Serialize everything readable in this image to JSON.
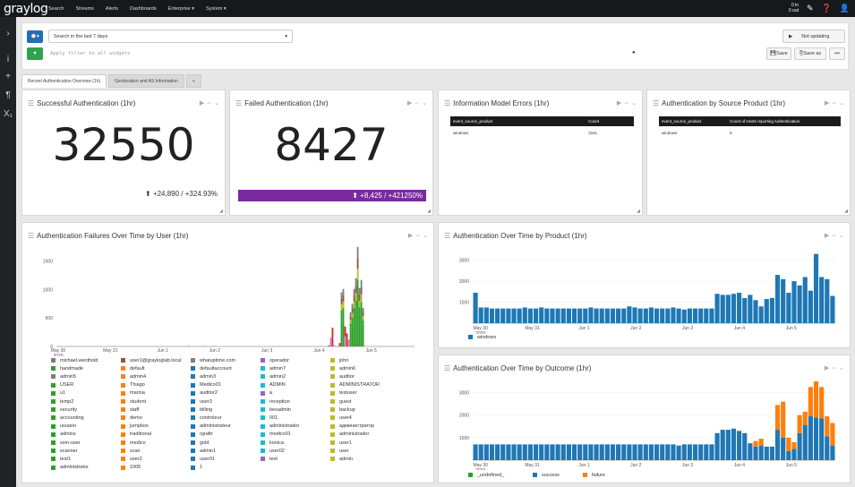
{
  "topbar": {
    "logo": "graylog",
    "nav": [
      "Search",
      "Streams",
      "Alerts",
      "Dashboards",
      "Enterprise ▾",
      "System ▾"
    ],
    "io_in": "0 in",
    "io_out": "0 out"
  },
  "search": {
    "time_range": "Search in the last 7 days",
    "filter_placeholder": "Apply filter to all widgets",
    "refresh_label": "Not updating",
    "save_label": "Save",
    "save_as_label": "Save as",
    "more_label": "•••"
  },
  "tabs": [
    "Recent Authentication Overview (1h)",
    "Geolocation and AS Information",
    "+"
  ],
  "widgets": {
    "success": {
      "title": "Successful Authentication (1hr)",
      "value": "32550",
      "delta": "+24,890 / +324.93%"
    },
    "failed": {
      "title": "Failed Authentication (1hr)",
      "value": "8427",
      "delta": "+8,425 / +421250%"
    },
    "model_errors": {
      "title": "Information Model Errors (1hr)",
      "headers": [
        "event_source_product",
        "Count"
      ],
      "rows": [
        [
          "windows",
          "3161"
        ]
      ]
    },
    "by_source": {
      "title": "Authentication by Source Product (1hr)",
      "headers": [
        "event_source_product",
        "Count of Hosts reporting Authentication"
      ],
      "rows": [
        [
          "windows",
          "5"
        ]
      ]
    },
    "failures_user": {
      "title": "Authentication Failures Over Time by User (1hr)"
    },
    "by_product": {
      "title": "Authentication Over Time by Product (1hr)"
    },
    "by_outcome": {
      "title": "Authentication Over Time by Outcome (1hr)"
    }
  },
  "colors": {
    "accent": "#7a2aa0",
    "green": "#2ca02c",
    "blue": "#1f77b4",
    "orange": "#ff7f0e"
  },
  "chart_data": [
    {
      "type": "bar",
      "stacked": true,
      "ylim": [
        0,
        1700
      ],
      "x_ticks": [
        "May 30\n2020",
        "May 31",
        "Jun 1",
        "Jun 2",
        "Jun 3",
        "Jun 4",
        "Jun 5"
      ],
      "y_ticks": [
        0,
        500,
        1000,
        1500
      ],
      "totals": [
        0,
        0,
        0,
        0,
        0,
        0,
        0,
        0,
        0,
        0,
        0,
        0,
        0,
        0,
        0,
        0,
        0,
        0,
        0,
        0,
        0,
        0,
        0,
        0,
        0,
        0,
        0,
        0,
        0,
        0,
        0,
        0,
        0,
        0,
        0,
        0,
        0,
        0,
        0,
        0,
        0,
        0,
        0,
        0,
        0,
        0,
        0,
        0,
        0,
        0,
        0,
        0,
        0,
        0,
        0,
        0,
        0,
        0,
        0,
        0,
        0,
        0,
        0,
        0,
        0,
        0,
        0,
        0,
        0,
        0,
        0,
        0,
        0,
        10,
        0,
        0,
        0,
        0,
        0,
        0,
        0,
        5,
        0,
        0,
        0,
        0,
        0,
        5,
        0,
        0,
        0,
        0,
        0,
        0,
        0,
        0,
        0,
        0,
        0,
        0,
        0,
        0,
        0,
        0,
        0,
        0,
        0,
        0,
        0,
        0,
        0,
        0,
        0,
        0,
        0,
        0,
        0,
        0,
        0,
        0,
        0,
        0,
        0,
        0,
        5,
        0,
        0,
        0,
        0,
        0,
        0,
        0,
        0,
        0,
        0,
        0,
        0,
        0,
        0,
        0,
        0,
        0,
        0,
        0,
        0,
        0,
        0,
        0,
        0,
        0,
        0,
        20,
        150,
        330,
        20,
        0,
        0,
        60,
        950,
        1010,
        350,
        230,
        120,
        600,
        750,
        1010,
        1200,
        1750,
        1030,
        1170,
        680,
        0,
        0,
        0,
        0,
        0,
        0,
        0,
        0,
        0,
        0,
        0,
        0,
        0,
        0,
        0,
        0,
        0,
        0,
        0,
        0,
        0,
        0,
        0,
        0,
        0,
        0,
        0,
        0
      ],
      "legend": [
        [
          "michael.wenthold",
          "#7f7f7f"
        ],
        [
          "user1@grayloglab.local",
          "#8c564b"
        ],
        [
          "whatuptime.com",
          "#7f7f7f"
        ],
        [
          "operador",
          "#9467bd"
        ],
        [
          "john",
          "#bcbd22"
        ],
        [
          "handmade",
          "#2ca02c"
        ],
        [
          "default",
          "#ff7f0e"
        ],
        [
          "defaultaccount",
          "#1f77b4"
        ],
        [
          "admin7",
          "#17becf"
        ],
        [
          "admin6",
          "#bcbd22"
        ],
        [
          "admin5",
          "#7f7f7f"
        ],
        [
          "admin4",
          "#ff7f0e"
        ],
        [
          "admin3",
          "#1f77b4"
        ],
        [
          "admin2",
          "#17becf"
        ],
        [
          "auditor",
          "#bcbd22"
        ],
        [
          "USER",
          "#2ca02c"
        ],
        [
          "Thiago",
          "#ff7f0e"
        ],
        [
          "Medico01",
          "#1f77b4"
        ],
        [
          "ADMIN",
          "#17becf"
        ],
        [
          "ADMINISTRATOR",
          "#bcbd22"
        ],
        [
          "u1",
          "#2ca02c"
        ],
        [
          "marina",
          "#ff7f0e"
        ],
        [
          "auditor2",
          "#1f77b4"
        ],
        [
          "a",
          "#9467bd"
        ],
        [
          "testuser",
          "#bcbd22"
        ],
        [
          "temp2",
          "#2ca02c"
        ],
        [
          "student",
          "#ff7f0e"
        ],
        [
          "user3",
          "#1f77b4"
        ],
        [
          "reception",
          "#17becf"
        ],
        [
          "guest",
          "#bcbd22"
        ],
        [
          "security",
          "#2ca02c"
        ],
        [
          "staff",
          "#ff7f0e"
        ],
        [
          "billing",
          "#1f77b4"
        ],
        [
          "besadmin",
          "#17becf"
        ],
        [
          "backup",
          "#bcbd22"
        ],
        [
          "accounting",
          "#2ca02c"
        ],
        [
          "demo",
          "#ff7f0e"
        ],
        [
          "controleur",
          "#1f77b4"
        ],
        [
          "001",
          "#17becf"
        ],
        [
          "user4",
          "#bcbd22"
        ],
        [
          "usuario",
          "#2ca02c"
        ],
        [
          "jumpbox",
          "#ff7f0e"
        ],
        [
          "administrateur",
          "#1f77b4"
        ],
        [
          "administrador",
          "#17becf"
        ],
        [
          "aдминистратор",
          "#bcbd22"
        ],
        [
          "admins",
          "#2ca02c"
        ],
        [
          "traditional",
          "#ff7f0e"
        ],
        [
          "rgraftr",
          "#1f77b4"
        ],
        [
          "medico01",
          "#17becf"
        ],
        [
          "administrador",
          "#bcbd22"
        ],
        [
          "ssm-user",
          "#2ca02c"
        ],
        [
          "medico",
          "#ff7f0e"
        ],
        [
          "gold",
          "#1f77b4"
        ],
        [
          "konica",
          "#17becf"
        ],
        [
          "user1",
          "#bcbd22"
        ],
        [
          "scanner",
          "#2ca02c"
        ],
        [
          "scan",
          "#ff7f0e"
        ],
        [
          "admin1",
          "#1f77b4"
        ],
        [
          "user02",
          "#17becf"
        ],
        [
          "user",
          "#bcbd22"
        ],
        [
          "test1",
          "#2ca02c"
        ],
        [
          "user2",
          "#ff7f0e"
        ],
        [
          "user01",
          "#1f77b4"
        ],
        [
          "test",
          "#9467bd"
        ],
        [
          "admin",
          "#bcbd22"
        ],
        [
          "administrator",
          "#2ca02c"
        ],
        [
          "1005",
          "#ff7f0e"
        ],
        [
          "1",
          "#1f77b4"
        ]
      ]
    },
    {
      "type": "bar",
      "ylim": [
        0,
        3500
      ],
      "x_ticks": [
        "May 30\n2020",
        "May 31",
        "Jun 1",
        "Jun 2",
        "Jun 3",
        "Jun 4",
        "Jun 5"
      ],
      "y_ticks": [
        1000,
        2000,
        3000
      ],
      "series": [
        {
          "name": "windows",
          "color": "#1f77b4",
          "values": [
            1450,
            750,
            750,
            700,
            700,
            700,
            700,
            700,
            700,
            750,
            700,
            700,
            750,
            700,
            700,
            700,
            700,
            700,
            700,
            700,
            700,
            750,
            700,
            700,
            700,
            700,
            700,
            700,
            800,
            750,
            700,
            700,
            750,
            700,
            700,
            700,
            750,
            700,
            650,
            700,
            700,
            700,
            700,
            700,
            1400,
            1350,
            1350,
            1400,
            1450,
            1200,
            1350,
            1100,
            800,
            1150,
            1200,
            2300,
            2100,
            1450,
            2000,
            1800,
            2200,
            1550,
            3300,
            2200,
            2100,
            1300
          ]
        }
      ]
    },
    {
      "type": "bar",
      "stacked": true,
      "ylim": [
        0,
        3500
      ],
      "x_ticks": [
        "May 30\n2020",
        "May 31",
        "Jun 1",
        "Jun 2",
        "Jun 3",
        "Jun 4",
        "Jun 5"
      ],
      "y_ticks": [
        1000,
        2000,
        3000
      ],
      "series": [
        {
          "name": "_undefined_",
          "color": "#2ca02c",
          "values": []
        },
        {
          "name": "success",
          "color": "#1f77b4",
          "values": [
            700,
            700,
            700,
            700,
            700,
            700,
            700,
            700,
            700,
            700,
            700,
            700,
            700,
            700,
            700,
            700,
            700,
            700,
            700,
            700,
            700,
            700,
            700,
            700,
            700,
            700,
            700,
            700,
            700,
            700,
            700,
            700,
            700,
            700,
            700,
            700,
            700,
            650,
            700,
            700,
            700,
            700,
            700,
            700,
            1200,
            1350,
            1350,
            1400,
            1300,
            1200,
            750,
            600,
            650,
            600,
            600,
            1350,
            1000,
            400,
            500,
            1200,
            1550,
            1950,
            1900,
            1850,
            1050,
            650
          ]
        },
        {
          "name": "failure",
          "color": "#ff7f0e",
          "values": [
            0,
            0,
            0,
            0,
            0,
            0,
            0,
            0,
            0,
            0,
            0,
            0,
            0,
            0,
            0,
            0,
            0,
            0,
            0,
            0,
            0,
            0,
            0,
            0,
            0,
            0,
            0,
            0,
            0,
            0,
            0,
            0,
            0,
            0,
            0,
            0,
            0,
            0,
            0,
            0,
            0,
            0,
            0,
            0,
            0,
            0,
            0,
            0,
            0,
            0,
            0,
            250,
            300,
            0,
            0,
            1100,
            1600,
            600,
            300,
            800,
            600,
            1300,
            1600,
            1400,
            900,
            1000
          ]
        }
      ]
    }
  ]
}
